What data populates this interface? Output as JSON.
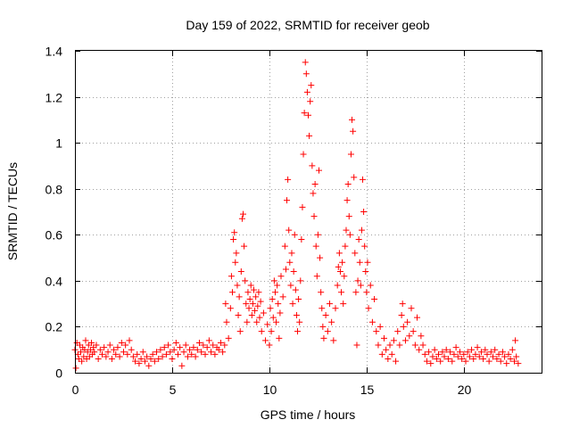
{
  "chart_data": {
    "type": "scatter",
    "title": "Day 159 of 2022, SRMTID for receiver geob",
    "xlabel": "GPS time / hours",
    "ylabel": "SRMTID / TECUs",
    "xlim": [
      0,
      24
    ],
    "ylim": [
      0,
      1.4
    ],
    "x_ticks": [
      0,
      5,
      10,
      15,
      20
    ],
    "x_tick_labels": [
      "0",
      "5",
      "10",
      "15",
      "20"
    ],
    "y_ticks": [
      0,
      0.2,
      0.4,
      0.6,
      0.8,
      1,
      1.2,
      1.4
    ],
    "y_tick_labels": [
      "0",
      "0.2",
      "0.4",
      "0.6",
      "0.8",
      "1",
      "1.2",
      "1.4"
    ],
    "grid": true,
    "marker": "+",
    "color": "#ff0000",
    "series": [
      {
        "name": "SRMTID",
        "points": [
          [
            0.0,
            0.1
          ],
          [
            0.05,
            0.02
          ],
          [
            0.1,
            0.13
          ],
          [
            0.15,
            0.08
          ],
          [
            0.2,
            0.06
          ],
          [
            0.25,
            0.12
          ],
          [
            0.3,
            0.09
          ],
          [
            0.35,
            0.05
          ],
          [
            0.4,
            0.11
          ],
          [
            0.45,
            0.07
          ],
          [
            0.5,
            0.1
          ],
          [
            0.55,
            0.14
          ],
          [
            0.6,
            0.06
          ],
          [
            0.65,
            0.09
          ],
          [
            0.7,
            0.12
          ],
          [
            0.75,
            0.07
          ],
          [
            0.8,
            0.1
          ],
          [
            0.85,
            0.13
          ],
          [
            0.9,
            0.08
          ],
          [
            0.95,
            0.11
          ],
          [
            1.0,
            0.09
          ],
          [
            1.1,
            0.12
          ],
          [
            1.2,
            0.06
          ],
          [
            1.3,
            0.1
          ],
          [
            1.4,
            0.08
          ],
          [
            1.5,
            0.11
          ],
          [
            1.6,
            0.07
          ],
          [
            1.7,
            0.09
          ],
          [
            1.8,
            0.12
          ],
          [
            1.9,
            0.06
          ],
          [
            2.0,
            0.1
          ],
          [
            2.1,
            0.08
          ],
          [
            2.2,
            0.11
          ],
          [
            2.3,
            0.07
          ],
          [
            2.4,
            0.13
          ],
          [
            2.5,
            0.09
          ],
          [
            2.6,
            0.12
          ],
          [
            2.7,
            0.08
          ],
          [
            2.8,
            0.14
          ],
          [
            2.9,
            0.1
          ],
          [
            3.0,
            0.07
          ],
          [
            3.1,
            0.05
          ],
          [
            3.2,
            0.08
          ],
          [
            3.3,
            0.04
          ],
          [
            3.4,
            0.06
          ],
          [
            3.5,
            0.09
          ],
          [
            3.6,
            0.05
          ],
          [
            3.7,
            0.07
          ],
          [
            3.8,
            0.03
          ],
          [
            3.9,
            0.06
          ],
          [
            4.0,
            0.08
          ],
          [
            4.1,
            0.05
          ],
          [
            4.2,
            0.09
          ],
          [
            4.3,
            0.06
          ],
          [
            4.4,
            0.1
          ],
          [
            4.5,
            0.07
          ],
          [
            4.6,
            0.11
          ],
          [
            4.7,
            0.08
          ],
          [
            4.8,
            0.12
          ],
          [
            4.9,
            0.09
          ],
          [
            5.0,
            0.06
          ],
          [
            5.1,
            0.1
          ],
          [
            5.2,
            0.13
          ],
          [
            5.3,
            0.08
          ],
          [
            5.4,
            0.11
          ],
          [
            5.5,
            0.03
          ],
          [
            5.6,
            0.09
          ],
          [
            5.7,
            0.12
          ],
          [
            5.8,
            0.07
          ],
          [
            5.9,
            0.1
          ],
          [
            6.0,
            0.08
          ],
          [
            6.1,
            0.11
          ],
          [
            6.2,
            0.07
          ],
          [
            6.3,
            0.1
          ],
          [
            6.4,
            0.13
          ],
          [
            6.5,
            0.09
          ],
          [
            6.6,
            0.12
          ],
          [
            6.7,
            0.08
          ],
          [
            6.8,
            0.11
          ],
          [
            6.9,
            0.14
          ],
          [
            7.0,
            0.09
          ],
          [
            7.1,
            0.12
          ],
          [
            7.2,
            0.08
          ],
          [
            7.3,
            0.11
          ],
          [
            7.4,
            0.1
          ],
          [
            7.5,
            0.13
          ],
          [
            7.6,
            0.09
          ],
          [
            7.7,
            0.12
          ],
          [
            7.75,
            0.3
          ],
          [
            7.8,
            0.22
          ],
          [
            7.9,
            0.15
          ],
          [
            8.0,
            0.28
          ],
          [
            8.05,
            0.42
          ],
          [
            8.1,
            0.35
          ],
          [
            8.15,
            0.58
          ],
          [
            8.2,
            0.61
          ],
          [
            8.25,
            0.48
          ],
          [
            8.3,
            0.52
          ],
          [
            8.35,
            0.38
          ],
          [
            8.4,
            0.25
          ],
          [
            8.45,
            0.33
          ],
          [
            8.5,
            0.18
          ],
          [
            8.55,
            0.44
          ],
          [
            8.6,
            0.67
          ],
          [
            8.65,
            0.69
          ],
          [
            8.7,
            0.55
          ],
          [
            8.75,
            0.4
          ],
          [
            8.8,
            0.3
          ],
          [
            8.85,
            0.22
          ],
          [
            8.9,
            0.35
          ],
          [
            8.95,
            0.28
          ],
          [
            9.0,
            0.32
          ],
          [
            9.05,
            0.38
          ],
          [
            9.1,
            0.25
          ],
          [
            9.15,
            0.3
          ],
          [
            9.2,
            0.36
          ],
          [
            9.25,
            0.27
          ],
          [
            9.3,
            0.33
          ],
          [
            9.35,
            0.22
          ],
          [
            9.4,
            0.29
          ],
          [
            9.45,
            0.35
          ],
          [
            9.5,
            0.24
          ],
          [
            9.55,
            0.31
          ],
          [
            9.6,
            0.18
          ],
          [
            9.7,
            0.26
          ],
          [
            9.8,
            0.14
          ],
          [
            9.9,
            0.21
          ],
          [
            10.0,
            0.12
          ],
          [
            10.05,
            0.28
          ],
          [
            10.1,
            0.18
          ],
          [
            10.15,
            0.32
          ],
          [
            10.2,
            0.24
          ],
          [
            10.25,
            0.4
          ],
          [
            10.3,
            0.35
          ],
          [
            10.35,
            0.22
          ],
          [
            10.4,
            0.38
          ],
          [
            10.45,
            0.3
          ],
          [
            10.5,
            0.15
          ],
          [
            10.55,
            0.26
          ],
          [
            10.6,
            0.42
          ],
          [
            10.7,
            0.33
          ],
          [
            10.8,
            0.55
          ],
          [
            10.85,
            0.45
          ],
          [
            10.9,
            0.75
          ],
          [
            10.95,
            0.84
          ],
          [
            11.0,
            0.62
          ],
          [
            11.05,
            0.48
          ],
          [
            11.1,
            0.38
          ],
          [
            11.15,
            0.52
          ],
          [
            11.2,
            0.3
          ],
          [
            11.25,
            0.44
          ],
          [
            11.3,
            0.6
          ],
          [
            11.35,
            0.36
          ],
          [
            11.4,
            0.25
          ],
          [
            11.45,
            0.18
          ],
          [
            11.5,
            0.32
          ],
          [
            11.55,
            0.22
          ],
          [
            11.6,
            0.4
          ],
          [
            11.65,
            0.58
          ],
          [
            11.7,
            0.72
          ],
          [
            11.75,
            0.95
          ],
          [
            11.8,
            1.13
          ],
          [
            11.85,
            1.35
          ],
          [
            11.9,
            1.3
          ],
          [
            11.95,
            1.22
          ],
          [
            12.0,
            1.12
          ],
          [
            12.05,
            1.03
          ],
          [
            12.1,
            1.18
          ],
          [
            12.15,
            1.25
          ],
          [
            12.2,
            0.9
          ],
          [
            12.25,
            0.78
          ],
          [
            12.3,
            0.68
          ],
          [
            12.35,
            0.82
          ],
          [
            12.4,
            0.55
          ],
          [
            12.45,
            0.42
          ],
          [
            12.5,
            0.6
          ],
          [
            12.55,
            0.88
          ],
          [
            12.6,
            0.5
          ],
          [
            12.65,
            0.35
          ],
          [
            12.7,
            0.28
          ],
          [
            12.75,
            0.2
          ],
          [
            12.8,
            0.15
          ],
          [
            12.9,
            0.25
          ],
          [
            13.0,
            0.18
          ],
          [
            13.1,
            0.3
          ],
          [
            13.2,
            0.22
          ],
          [
            13.3,
            0.14
          ],
          [
            13.4,
            0.28
          ],
          [
            13.5,
            0.38
          ],
          [
            13.55,
            0.46
          ],
          [
            13.6,
            0.52
          ],
          [
            13.65,
            0.44
          ],
          [
            13.7,
            0.35
          ],
          [
            13.75,
            0.48
          ],
          [
            13.8,
            0.3
          ],
          [
            13.85,
            0.42
          ],
          [
            13.9,
            0.55
          ],
          [
            13.95,
            0.62
          ],
          [
            14.0,
            0.75
          ],
          [
            14.05,
            0.82
          ],
          [
            14.1,
            0.68
          ],
          [
            14.15,
            0.6
          ],
          [
            14.2,
            0.95
          ],
          [
            14.25,
            1.1
          ],
          [
            14.3,
            1.05
          ],
          [
            14.35,
            0.85
          ],
          [
            14.4,
            0.52
          ],
          [
            14.45,
            0.35
          ],
          [
            14.5,
            0.12
          ],
          [
            14.55,
            0.4
          ],
          [
            14.6,
            0.58
          ],
          [
            14.65,
            0.48
          ],
          [
            14.7,
            0.38
          ],
          [
            14.75,
            0.62
          ],
          [
            14.8,
            0.84
          ],
          [
            14.85,
            0.7
          ],
          [
            14.9,
            0.55
          ],
          [
            14.95,
            0.44
          ],
          [
            15.0,
            0.35
          ],
          [
            15.05,
            0.48
          ],
          [
            15.1,
            0.28
          ],
          [
            15.2,
            0.38
          ],
          [
            15.3,
            0.22
          ],
          [
            15.4,
            0.32
          ],
          [
            15.5,
            0.18
          ],
          [
            15.6,
            0.12
          ],
          [
            15.7,
            0.2
          ],
          [
            15.8,
            0.08
          ],
          [
            15.9,
            0.15
          ],
          [
            16.0,
            0.1
          ],
          [
            16.1,
            0.06
          ],
          [
            16.2,
            0.12
          ],
          [
            16.3,
            0.08
          ],
          [
            16.4,
            0.14
          ],
          [
            16.5,
            0.05
          ],
          [
            16.6,
            0.18
          ],
          [
            16.7,
            0.12
          ],
          [
            16.8,
            0.25
          ],
          [
            16.85,
            0.3
          ],
          [
            16.9,
            0.2
          ],
          [
            17.0,
            0.14
          ],
          [
            17.1,
            0.22
          ],
          [
            17.2,
            0.16
          ],
          [
            17.3,
            0.28
          ],
          [
            17.4,
            0.18
          ],
          [
            17.5,
            0.12
          ],
          [
            17.6,
            0.24
          ],
          [
            17.7,
            0.1
          ],
          [
            17.8,
            0.16
          ],
          [
            17.9,
            0.12
          ],
          [
            18.0,
            0.08
          ],
          [
            18.1,
            0.05
          ],
          [
            18.2,
            0.09
          ],
          [
            18.3,
            0.04
          ],
          [
            18.4,
            0.07
          ],
          [
            18.5,
            0.1
          ],
          [
            18.6,
            0.06
          ],
          [
            18.7,
            0.08
          ],
          [
            18.8,
            0.05
          ],
          [
            18.9,
            0.09
          ],
          [
            19.0,
            0.07
          ],
          [
            19.1,
            0.1
          ],
          [
            19.2,
            0.06
          ],
          [
            19.3,
            0.09
          ],
          [
            19.4,
            0.05
          ],
          [
            19.5,
            0.08
          ],
          [
            19.6,
            0.11
          ],
          [
            19.7,
            0.07
          ],
          [
            19.8,
            0.09
          ],
          [
            19.9,
            0.06
          ],
          [
            20.0,
            0.08
          ],
          [
            20.1,
            0.05
          ],
          [
            20.2,
            0.09
          ],
          [
            20.3,
            0.07
          ],
          [
            20.4,
            0.1
          ],
          [
            20.5,
            0.06
          ],
          [
            20.6,
            0.08
          ],
          [
            20.7,
            0.11
          ],
          [
            20.8,
            0.07
          ],
          [
            20.9,
            0.09
          ],
          [
            21.0,
            0.06
          ],
          [
            21.1,
            0.1
          ],
          [
            21.2,
            0.08
          ],
          [
            21.3,
            0.05
          ],
          [
            21.4,
            0.09
          ],
          [
            21.5,
            0.07
          ],
          [
            21.6,
            0.1
          ],
          [
            21.7,
            0.06
          ],
          [
            21.8,
            0.08
          ],
          [
            21.9,
            0.05
          ],
          [
            22.0,
            0.09
          ],
          [
            22.1,
            0.07
          ],
          [
            22.2,
            0.04
          ],
          [
            22.3,
            0.08
          ],
          [
            22.4,
            0.06
          ],
          [
            22.5,
            0.1
          ],
          [
            22.6,
            0.05
          ],
          [
            22.65,
            0.14
          ],
          [
            22.7,
            0.07
          ],
          [
            22.8,
            0.04
          ]
        ]
      }
    ]
  }
}
